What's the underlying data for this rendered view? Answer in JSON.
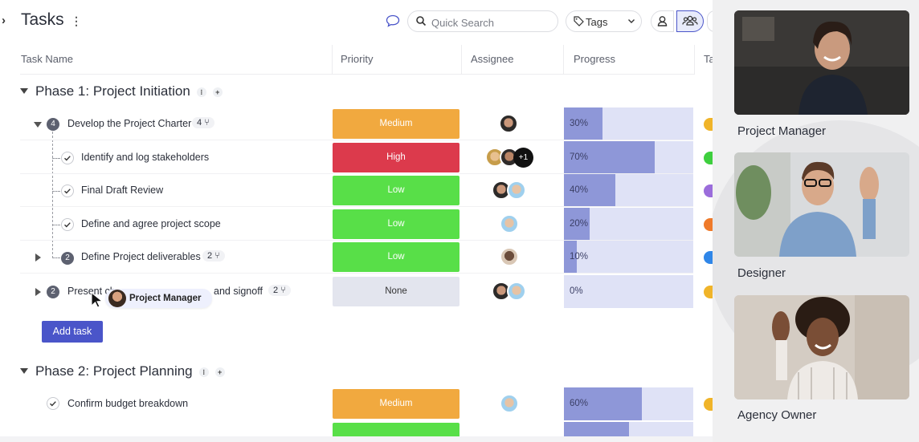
{
  "header": {
    "title": "Tasks",
    "search_placeholder": "Quick Search",
    "tags_label": "Tags"
  },
  "columns": {
    "task_name": "Task Name",
    "priority": "Priority",
    "assignee": "Assignee",
    "progress": "Progress",
    "tags_partial": "Ta"
  },
  "phases": [
    {
      "label": "Phase 1: Project Initiation"
    },
    {
      "label": "Phase 2: Project Planning"
    }
  ],
  "rows": [
    {
      "name": "Develop the Project Charter",
      "count": "4",
      "sub_count": "4",
      "priority": "Medium",
      "progress": "30%",
      "progress_value": 0.3,
      "tag_color": "#f0b429"
    },
    {
      "name": "Identify and log stakeholders",
      "priority": "High",
      "progress": "70%",
      "progress_value": 0.7,
      "more": "+1",
      "tag_color": "#3ecf3e"
    },
    {
      "name": "Final Draft Review",
      "priority": "Low",
      "progress": "40%",
      "progress_value": 0.4,
      "tag_color": "#9b6ddb"
    },
    {
      "name": "Define and agree project scope",
      "priority": "Low",
      "progress": "20%",
      "progress_value": 0.2,
      "tag_color": "#ef7a2a"
    },
    {
      "name": "Define Project deliverables",
      "count": "2",
      "sub_count": "2",
      "priority": "Low",
      "progress": "10%",
      "progress_value": 0.1,
      "tag_color": "#2f86e8"
    },
    {
      "name_start": "Present ch",
      "name_end": "and signoff",
      "count": "2",
      "sub_count": "2",
      "priority": "None",
      "progress": "0%",
      "progress_value": 0.0,
      "tag_color": "#f0b429"
    },
    {
      "name": "Confirm budget breakdown",
      "priority": "Medium",
      "progress": "60%",
      "progress_value": 0.6,
      "tag_color": "#f0b429"
    }
  ],
  "add_task_label": "Add task",
  "cursor_tag": "Project Manager",
  "participants": [
    {
      "label": "Project Manager"
    },
    {
      "label": "Designer"
    },
    {
      "label": "Agency Owner"
    }
  ],
  "colors": {
    "medium": "#f1a93f",
    "high": "#dc3a4c",
    "low": "#58df48",
    "none": "#e3e5ee",
    "accent": "#4a55c9",
    "progress_fill": "#8e97d8",
    "progress_track": "#dfe2f6"
  }
}
